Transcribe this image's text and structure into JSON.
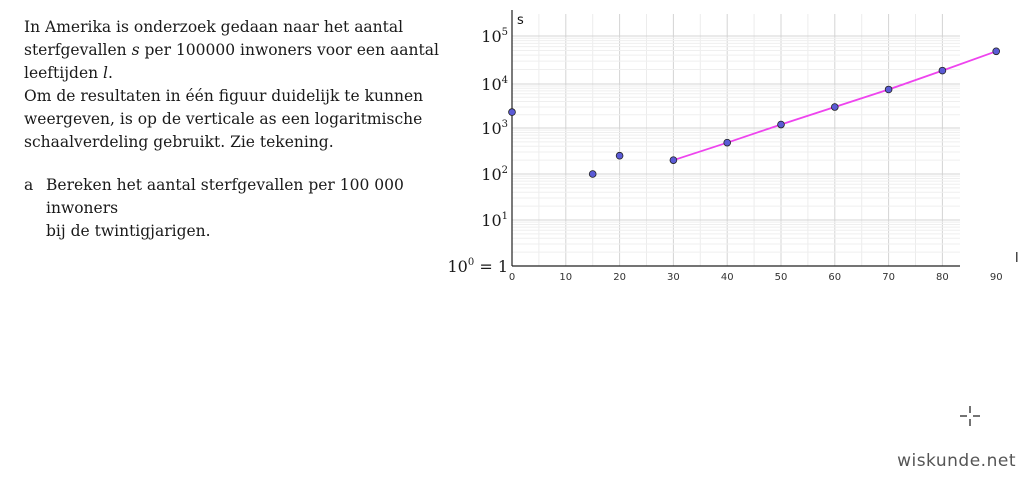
{
  "intro": {
    "line1": "In Amerika is onderzoek gedaan naar het aantal",
    "line2_pre": "sterfgevallen ",
    "line2_var": "s",
    "line2_post": " per 100000 inwoners voor een aantal",
    "line3_pre": "leeftijden ",
    "line3_var": "l",
    "line3_post": ".",
    "line4": "Om de resultaten in één figuur duidelijk te kunnen",
    "line5": "weergeven, is op de verticale as een logaritmische",
    "line6": "schaalverdeling gebruikt. Zie tekening."
  },
  "question": {
    "letter": "a",
    "line1": "Bereken het aantal sterfgevallen per 100 000 inwoners",
    "line2": "bij de twintigjarigen."
  },
  "chart_data": {
    "type": "scatter",
    "xlabel": "l",
    "ylabel": "s",
    "x_ticks": [
      0,
      10,
      20,
      30,
      40,
      50,
      60,
      70,
      80,
      90
    ],
    "y_scale": "log",
    "y_tick_labels": [
      {
        "exp": 0,
        "base": "10",
        "sup": "0",
        "suffix": " = 1"
      },
      {
        "exp": 1,
        "base": "10",
        "sup": "1",
        "suffix": ""
      },
      {
        "exp": 2,
        "base": "10",
        "sup": "2",
        "suffix": ""
      },
      {
        "exp": 3,
        "base": "10",
        "sup": "3",
        "suffix": ""
      },
      {
        "exp": 4,
        "base": "10",
        "sup": "4",
        "suffix": ""
      },
      {
        "exp": 5,
        "base": "10",
        "sup": "5",
        "suffix": ""
      }
    ],
    "xlim": [
      0,
      95
    ],
    "points": [
      {
        "x": 0,
        "y": 2300
      },
      {
        "x": 15,
        "y": 100
      },
      {
        "x": 20,
        "y": 250
      },
      {
        "x": 30,
        "y": 200
      },
      {
        "x": 40,
        "y": 480
      },
      {
        "x": 50,
        "y": 1200
      },
      {
        "x": 60,
        "y": 3000
      },
      {
        "x": 70,
        "y": 7500
      },
      {
        "x": 80,
        "y": 19000
      },
      {
        "x": 90,
        "y": 48000
      }
    ],
    "fit_line": {
      "x_from": 30,
      "x_to": 90,
      "color": "#ee44ee"
    },
    "point_color": "#5b5bd6",
    "grid": true
  },
  "watermark": "wiskunde.net"
}
